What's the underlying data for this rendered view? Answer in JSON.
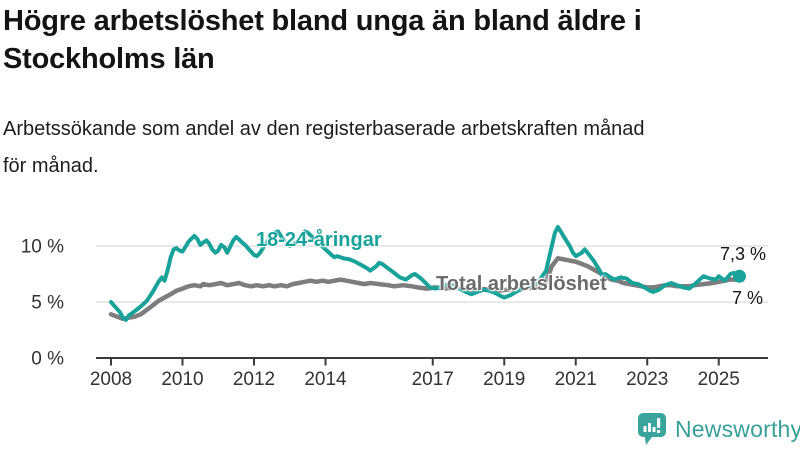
{
  "header": {
    "title_lines": [
      "Högre arbetslöshet bland unga än bland äldre i",
      "Stockholms län"
    ],
    "subtitle_lines": [
      "Arbetssökande som andel av den registerbaserade arbetskraften månad",
      "för månad."
    ]
  },
  "footer": {
    "brand": "Newsworthy",
    "logo_icon": "bar-chart-speech-pin"
  },
  "colors": {
    "youth_line": "#18a29a",
    "total_line": "#7d7d7d",
    "grid": "#dcdcdc",
    "axis": "#3c3c3c",
    "axis_text": "#333333",
    "brand_teal": "#3aa39c"
  },
  "chart_data": {
    "type": "line",
    "title": "Högre arbetslöshet bland unga än bland äldre i Stockholms län",
    "subtitle": "Arbetssökande som andel av den registerbaserade arbetskraften månad för månad.",
    "unit": "%",
    "grid": true,
    "legend_position": "inline-labels",
    "x_axis": {
      "ticks": [
        2008,
        2010,
        2012,
        2014,
        2017,
        2019,
        2021,
        2023,
        2025
      ],
      "range": [
        2007.6,
        2026.4
      ]
    },
    "y_axis": {
      "ticks": [
        {
          "label": "0 %",
          "value": 0
        },
        {
          "label": "5 %",
          "value": 5
        },
        {
          "label": "10 %",
          "value": 10
        }
      ],
      "gridlines": [
        5,
        10
      ],
      "range": [
        0,
        12
      ]
    },
    "series": [
      {
        "name": "18-24-åringar",
        "color": "#18a29a",
        "stroke_width": 4,
        "end_label": "7,3 %",
        "end_value": 7.3,
        "end_dot": true,
        "points": [
          [
            2008.0,
            5.0
          ],
          [
            2008.08,
            4.7
          ],
          [
            2008.25,
            4.1
          ],
          [
            2008.33,
            3.6
          ],
          [
            2008.42,
            3.4
          ],
          [
            2008.5,
            3.8
          ],
          [
            2008.67,
            4.2
          ],
          [
            2008.83,
            4.6
          ],
          [
            2009.0,
            5.1
          ],
          [
            2009.17,
            5.9
          ],
          [
            2009.33,
            6.8
          ],
          [
            2009.42,
            7.2
          ],
          [
            2009.5,
            6.9
          ],
          [
            2009.58,
            7.8
          ],
          [
            2009.67,
            9.0
          ],
          [
            2009.75,
            9.7
          ],
          [
            2009.83,
            9.8
          ],
          [
            2009.92,
            9.6
          ],
          [
            2010.0,
            9.5
          ],
          [
            2010.08,
            9.9
          ],
          [
            2010.17,
            10.4
          ],
          [
            2010.33,
            10.9
          ],
          [
            2010.42,
            10.6
          ],
          [
            2010.5,
            10.1
          ],
          [
            2010.58,
            10.3
          ],
          [
            2010.67,
            10.5
          ],
          [
            2010.75,
            10.2
          ],
          [
            2010.83,
            9.7
          ],
          [
            2010.92,
            9.4
          ],
          [
            2011.0,
            9.6
          ],
          [
            2011.08,
            10.1
          ],
          [
            2011.17,
            9.9
          ],
          [
            2011.25,
            9.4
          ],
          [
            2011.33,
            9.9
          ],
          [
            2011.42,
            10.5
          ],
          [
            2011.5,
            10.8
          ],
          [
            2011.58,
            10.6
          ],
          [
            2011.67,
            10.3
          ],
          [
            2011.75,
            10.1
          ],
          [
            2011.83,
            9.8
          ],
          [
            2011.92,
            9.5
          ],
          [
            2012.0,
            9.2
          ],
          [
            2012.08,
            9.1
          ],
          [
            2012.17,
            9.4
          ],
          [
            2012.25,
            9.8
          ],
          [
            2012.33,
            10.2
          ],
          [
            2012.42,
            10.6
          ],
          [
            2012.58,
            11.2
          ],
          [
            2012.67,
            11.3
          ],
          [
            2012.75,
            10.9
          ],
          [
            2012.83,
            10.5
          ],
          [
            2012.92,
            10.2
          ],
          [
            2013.0,
            10.0
          ],
          [
            2013.17,
            10.3
          ],
          [
            2013.33,
            11.0
          ],
          [
            2013.42,
            11.3
          ],
          [
            2013.5,
            11.2
          ],
          [
            2013.67,
            10.7
          ],
          [
            2013.83,
            10.2
          ],
          [
            2014.0,
            9.7
          ],
          [
            2014.17,
            9.2
          ],
          [
            2014.25,
            9.0
          ],
          [
            2014.33,
            9.1
          ],
          [
            2014.5,
            8.9
          ],
          [
            2014.67,
            8.8
          ],
          [
            2014.83,
            8.6
          ],
          [
            2015.0,
            8.3
          ],
          [
            2015.17,
            8.0
          ],
          [
            2015.25,
            7.8
          ],
          [
            2015.42,
            8.2
          ],
          [
            2015.5,
            8.5
          ],
          [
            2015.58,
            8.4
          ],
          [
            2015.75,
            8.0
          ],
          [
            2015.92,
            7.6
          ],
          [
            2016.08,
            7.2
          ],
          [
            2016.25,
            7.0
          ],
          [
            2016.42,
            7.4
          ],
          [
            2016.5,
            7.5
          ],
          [
            2016.67,
            7.1
          ],
          [
            2016.83,
            6.6
          ],
          [
            2016.92,
            6.3
          ],
          [
            2017.08,
            6.2
          ],
          [
            2017.25,
            6.4
          ],
          [
            2017.42,
            6.6
          ],
          [
            2017.58,
            6.5
          ],
          [
            2017.75,
            6.2
          ],
          [
            2017.92,
            5.9
          ],
          [
            2018.08,
            5.7
          ],
          [
            2018.25,
            5.9
          ],
          [
            2018.42,
            6.1
          ],
          [
            2018.58,
            6.0
          ],
          [
            2018.75,
            5.8
          ],
          [
            2018.92,
            5.5
          ],
          [
            2019.0,
            5.4
          ],
          [
            2019.17,
            5.6
          ],
          [
            2019.33,
            5.9
          ],
          [
            2019.5,
            6.2
          ],
          [
            2019.67,
            6.4
          ],
          [
            2019.83,
            6.6
          ],
          [
            2020.0,
            7.0
          ],
          [
            2020.17,
            7.8
          ],
          [
            2020.33,
            10.0
          ],
          [
            2020.42,
            11.2
          ],
          [
            2020.5,
            11.7
          ],
          [
            2020.58,
            11.3
          ],
          [
            2020.67,
            10.8
          ],
          [
            2020.83,
            10.0
          ],
          [
            2020.92,
            9.4
          ],
          [
            2021.0,
            9.1
          ],
          [
            2021.17,
            9.4
          ],
          [
            2021.25,
            9.7
          ],
          [
            2021.33,
            9.4
          ],
          [
            2021.5,
            8.7
          ],
          [
            2021.67,
            7.8
          ],
          [
            2021.75,
            7.3
          ],
          [
            2021.83,
            7.5
          ],
          [
            2021.92,
            7.3
          ],
          [
            2022.08,
            7.0
          ],
          [
            2022.25,
            7.2
          ],
          [
            2022.42,
            7.1
          ],
          [
            2022.58,
            6.7
          ],
          [
            2022.75,
            6.6
          ],
          [
            2022.92,
            6.3
          ],
          [
            2023.08,
            6.0
          ],
          [
            2023.17,
            5.9
          ],
          [
            2023.33,
            6.1
          ],
          [
            2023.5,
            6.5
          ],
          [
            2023.67,
            6.7
          ],
          [
            2023.83,
            6.5
          ],
          [
            2024.0,
            6.3
          ],
          [
            2024.17,
            6.2
          ],
          [
            2024.33,
            6.6
          ],
          [
            2024.5,
            7.1
          ],
          [
            2024.58,
            7.3
          ],
          [
            2024.75,
            7.1
          ],
          [
            2024.92,
            7.0
          ],
          [
            2025.0,
            7.3
          ],
          [
            2025.17,
            6.9
          ],
          [
            2025.33,
            7.5
          ],
          [
            2025.42,
            7.6
          ],
          [
            2025.5,
            7.4
          ],
          [
            2025.58,
            7.3
          ]
        ]
      },
      {
        "name": "Total arbetslöshet",
        "color": "#7d7d7d",
        "stroke_width": 4.5,
        "end_label": "7 %",
        "end_value": 7.0,
        "end_dot": false,
        "points": [
          [
            2008.0,
            3.9
          ],
          [
            2008.17,
            3.7
          ],
          [
            2008.33,
            3.5
          ],
          [
            2008.5,
            3.6
          ],
          [
            2008.67,
            3.7
          ],
          [
            2008.83,
            3.9
          ],
          [
            2009.0,
            4.3
          ],
          [
            2009.17,
            4.7
          ],
          [
            2009.33,
            5.1
          ],
          [
            2009.5,
            5.4
          ],
          [
            2009.67,
            5.7
          ],
          [
            2009.83,
            6.0
          ],
          [
            2010.0,
            6.2
          ],
          [
            2010.17,
            6.4
          ],
          [
            2010.33,
            6.5
          ],
          [
            2010.5,
            6.4
          ],
          [
            2010.58,
            6.6
          ],
          [
            2010.75,
            6.5
          ],
          [
            2010.92,
            6.6
          ],
          [
            2011.08,
            6.7
          ],
          [
            2011.25,
            6.5
          ],
          [
            2011.42,
            6.6
          ],
          [
            2011.58,
            6.7
          ],
          [
            2011.75,
            6.5
          ],
          [
            2011.92,
            6.4
          ],
          [
            2012.08,
            6.5
          ],
          [
            2012.25,
            6.4
          ],
          [
            2012.42,
            6.5
          ],
          [
            2012.58,
            6.4
          ],
          [
            2012.75,
            6.5
          ],
          [
            2012.92,
            6.4
          ],
          [
            2013.08,
            6.6
          ],
          [
            2013.25,
            6.7
          ],
          [
            2013.42,
            6.8
          ],
          [
            2013.58,
            6.9
          ],
          [
            2013.75,
            6.8
          ],
          [
            2013.92,
            6.9
          ],
          [
            2014.08,
            6.8
          ],
          [
            2014.25,
            6.9
          ],
          [
            2014.42,
            7.0
          ],
          [
            2014.58,
            6.9
          ],
          [
            2014.75,
            6.8
          ],
          [
            2014.92,
            6.7
          ],
          [
            2015.08,
            6.6
          ],
          [
            2015.25,
            6.7
          ],
          [
            2015.5,
            6.6
          ],
          [
            2015.75,
            6.5
          ],
          [
            2015.92,
            6.4
          ],
          [
            2016.17,
            6.5
          ],
          [
            2016.42,
            6.4
          ],
          [
            2016.58,
            6.3
          ],
          [
            2016.83,
            6.2
          ],
          [
            2017.08,
            6.3
          ],
          [
            2017.33,
            6.2
          ],
          [
            2017.58,
            6.3
          ],
          [
            2017.83,
            6.2
          ],
          [
            2018.08,
            6.1
          ],
          [
            2018.33,
            6.2
          ],
          [
            2018.58,
            6.1
          ],
          [
            2018.83,
            6.0
          ],
          [
            2019.08,
            6.1
          ],
          [
            2019.33,
            6.2
          ],
          [
            2019.58,
            6.2
          ],
          [
            2019.83,
            6.3
          ],
          [
            2020.0,
            6.3
          ],
          [
            2020.17,
            6.8
          ],
          [
            2020.33,
            8.2
          ],
          [
            2020.5,
            8.9
          ],
          [
            2020.67,
            8.8
          ],
          [
            2020.83,
            8.7
          ],
          [
            2021.0,
            8.6
          ],
          [
            2021.17,
            8.4
          ],
          [
            2021.33,
            8.2
          ],
          [
            2021.5,
            7.9
          ],
          [
            2021.67,
            7.6
          ],
          [
            2021.83,
            7.3
          ],
          [
            2022.0,
            7.0
          ],
          [
            2022.17,
            6.9
          ],
          [
            2022.33,
            6.7
          ],
          [
            2022.5,
            6.6
          ],
          [
            2022.67,
            6.5
          ],
          [
            2022.83,
            6.4
          ],
          [
            2023.0,
            6.3
          ],
          [
            2023.17,
            6.3
          ],
          [
            2023.33,
            6.4
          ],
          [
            2023.5,
            6.5
          ],
          [
            2023.67,
            6.5
          ],
          [
            2023.83,
            6.4
          ],
          [
            2024.0,
            6.4
          ],
          [
            2024.17,
            6.4
          ],
          [
            2024.33,
            6.5
          ],
          [
            2024.58,
            6.6
          ],
          [
            2024.83,
            6.7
          ],
          [
            2025.0,
            6.8
          ],
          [
            2025.17,
            6.9
          ],
          [
            2025.33,
            7.0
          ],
          [
            2025.5,
            7.0
          ],
          [
            2025.58,
            7.0
          ]
        ]
      }
    ]
  }
}
